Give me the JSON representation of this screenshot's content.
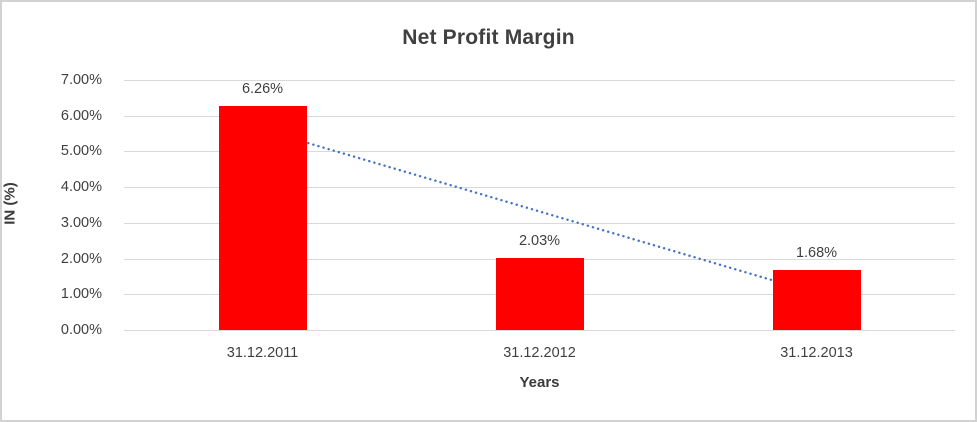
{
  "chart_data": {
    "type": "bar",
    "title": "Net Profit Margin",
    "categories": [
      "31.12.2011",
      "31.12.2012",
      "31.12.2013"
    ],
    "values": [
      6.26,
      2.03,
      1.68
    ],
    "data_labels": [
      "6.26%",
      "2.03%",
      "1.68%"
    ],
    "xlabel": "Years",
    "ylabel": "IN (%)",
    "ylim": [
      0,
      7
    ],
    "ytick_step": 1,
    "ytick_labels": [
      "0.00%",
      "1.00%",
      "2.00%",
      "3.00%",
      "4.00%",
      "5.00%",
      "6.00%",
      "7.00%"
    ],
    "grid": true,
    "legend": "none",
    "bar_color": "#FF0000",
    "gridline_color": "#D9D9D9",
    "text_color": "#404040",
    "trendline": {
      "type": "linear",
      "style": "dotted",
      "color": "#4472C4",
      "start_value": 5.61,
      "end_value": 1.03
    }
  }
}
